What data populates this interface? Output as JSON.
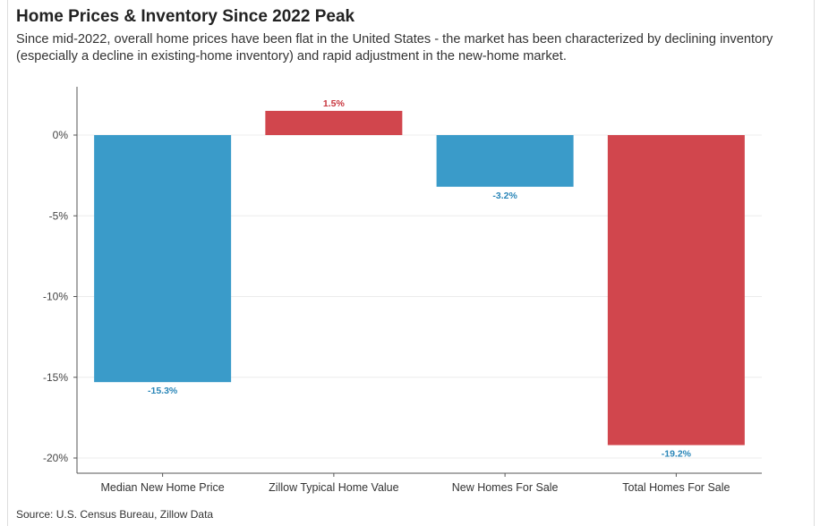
{
  "title": "Home Prices & Inventory Since 2022 Peak",
  "subtitle": "Since mid-2022, overall home prices have been flat in the United States - the market has been characterized by declining inventory (especially a decline in existing-home inventory) and rapid adjustment in the new-home market.",
  "source": "Source: U.S. Census Bureau, Zillow Data",
  "colors": {
    "negative": "#3a9bc9",
    "positive": "#d1464d",
    "negative_label": "#2a86b8",
    "positive_label": "#c8363e",
    "grid": "#ececec",
    "axis": "#555555"
  },
  "chart_data": {
    "type": "bar",
    "categories": [
      "Median New Home Price",
      "Zillow Typical Home Value",
      "New Homes For Sale",
      "Total Homes For Sale"
    ],
    "values": [
      -15.3,
      1.5,
      -3.2,
      -19.2
    ],
    "value_labels": [
      "-15.3%",
      "1.5%",
      "-3.2%",
      "-19.2%"
    ],
    "bar_colors": [
      "#3a9bc9",
      "#d1464d",
      "#3a9bc9",
      "#d1464d"
    ],
    "yticks": [
      0,
      -5,
      -10,
      -15,
      -20
    ],
    "ytick_labels": [
      "0%",
      "-5%",
      "-10%",
      "-15%",
      "-20%"
    ],
    "ylim": [
      -21,
      3
    ],
    "grid": true,
    "legend": "none"
  }
}
